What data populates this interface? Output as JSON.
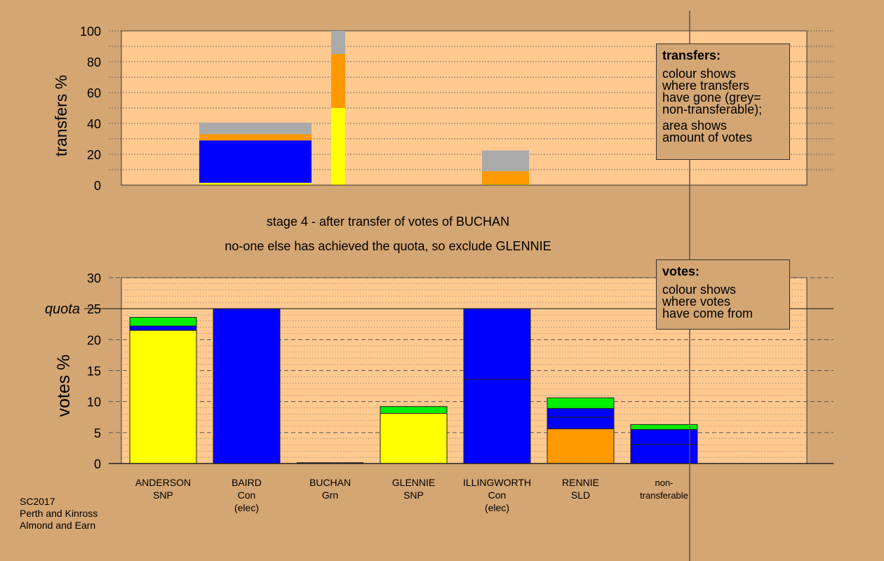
{
  "stage_text": "stage 4 - after transfer of votes of BUCHAN",
  "note_text": "no-one else has achieved the quota, so exclude GLENNIE",
  "legend_transfers": {
    "title": "transfers:",
    "line1": "colour shows\nwhere transfers\nhave gone (grey=\nnon-transferable);",
    "line2": "area shows\namount of votes"
  },
  "legend_votes": {
    "title": "votes:",
    "line1": "colour shows\nwhere votes\nhave come from"
  },
  "footer": [
    "SC2017",
    "Perth and Kinross",
    "Almond and Earn"
  ],
  "colors": {
    "background": "#d4a673",
    "plot_bg": "#ffc990",
    "snp": "#ffff00",
    "con": "#0000ff",
    "grn": "#00ee00",
    "ld": "#ff9900",
    "nontransferable": "#aaaaaa"
  },
  "chart_data": [
    {
      "type": "bar",
      "ylabel": "transfers %",
      "ylim": [
        0,
        100
      ],
      "yticks": [
        0,
        20,
        40,
        60,
        80,
        100
      ],
      "grid": true,
      "bars": [
        {
          "segments": [
            {
              "color": "snp",
              "value": 1.5
            },
            {
              "color": "con",
              "value": 27.5
            },
            {
              "color": "ld",
              "value": 4
            },
            {
              "color": "nontransferable",
              "value": 7.5
            }
          ]
        },
        {
          "segments": [
            {
              "color": "snp",
              "value": 50
            },
            {
              "color": "ld",
              "value": 35
            },
            {
              "color": "nontransferable",
              "value": 15
            }
          ]
        },
        {
          "segments": [
            {
              "color": "snp",
              "value": 0.5
            },
            {
              "color": "ld",
              "value": 8.5
            },
            {
              "color": "nontransferable",
              "value": 13.5
            }
          ]
        }
      ]
    },
    {
      "type": "bar",
      "ylabel": "votes %",
      "ylim": [
        0,
        30
      ],
      "yticks": [
        0,
        5,
        10,
        15,
        20,
        25,
        30
      ],
      "quota": 25,
      "quota_label": "quota",
      "grid": true,
      "categories": [
        {
          "name": "ANDERSON",
          "party": "SNP",
          "extra": ""
        },
        {
          "name": "BAIRD",
          "party": "Con",
          "extra": "(elec)"
        },
        {
          "name": "BUCHAN",
          "party": "Grn",
          "extra": ""
        },
        {
          "name": "GLENNIE",
          "party": "SNP",
          "extra": ""
        },
        {
          "name": "ILLINGWORTH",
          "party": "Con",
          "extra": "(elec)"
        },
        {
          "name": "RENNIE",
          "party": "SLD",
          "extra": ""
        },
        {
          "name": "non-",
          "party": "transferable",
          "extra": ""
        }
      ],
      "stacks": [
        [
          {
            "color": "snp",
            "value": 21.5
          },
          {
            "color": "con",
            "value": 0.7
          },
          {
            "color": "grn",
            "value": 1.4
          }
        ],
        [
          {
            "color": "con",
            "value": 25
          }
        ],
        [],
        [
          {
            "color": "snp",
            "value": 8.1
          },
          {
            "color": "grn",
            "value": 1.1
          }
        ],
        [
          {
            "color": "con",
            "value": 13.6
          },
          {
            "color": "con",
            "value": 11.4
          }
        ],
        [
          {
            "color": "ld",
            "value": 5.6
          },
          {
            "color": "con",
            "value": 1.9
          },
          {
            "color": "con",
            "value": 1.4
          },
          {
            "color": "grn",
            "value": 1.7
          }
        ],
        [
          {
            "color": "con",
            "value": 3.1
          },
          {
            "color": "con",
            "value": 2.4
          },
          {
            "color": "grn",
            "value": 0.8
          }
        ]
      ]
    }
  ]
}
